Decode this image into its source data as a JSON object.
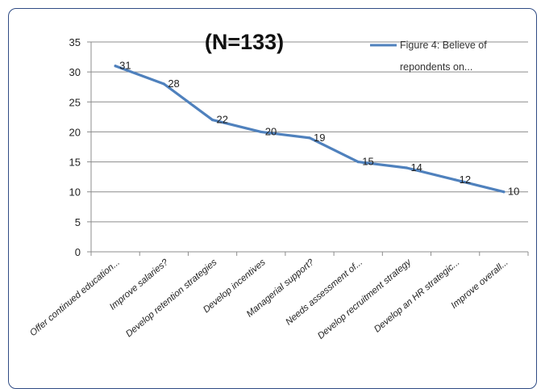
{
  "chart_data": {
    "type": "line",
    "title": "(N=133)",
    "categories": [
      "Offer continued education...",
      "Improve salaries?",
      "Develop retention strategies",
      "Develop incentives",
      "Managerial support?",
      "Needs assessment of...",
      "Develop recruitment strategy",
      "Develop an HR strategic...",
      "Improve overall..."
    ],
    "series": [
      {
        "name": "Figure 4: Believe of repondents on...",
        "values": [
          31,
          28,
          22,
          20,
          19,
          15,
          14,
          12,
          10
        ],
        "color": "#4f81bd"
      }
    ],
    "legend": {
      "line1": "Figure 4: Believe of",
      "line2": "repondents on...",
      "position": "top-right"
    },
    "yticks": [
      "0",
      "5",
      "10",
      "15",
      "20",
      "25",
      "30",
      "35"
    ],
    "ylim": [
      0,
      35
    ],
    "grid": true,
    "data_labels": true
  }
}
